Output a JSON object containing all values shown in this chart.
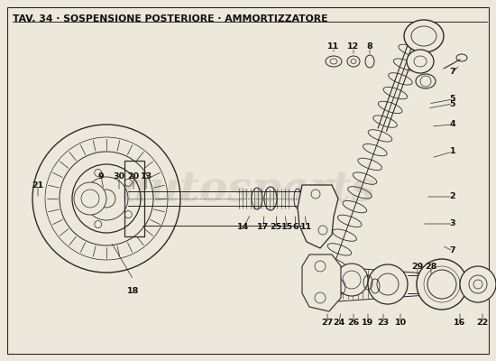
{
  "title": "TAV. 34 · SOSPENSIONE POSTERIORE · AMMORTIZZATORE",
  "bg_color": "#ede8dc",
  "border_color": "#444444",
  "line_color": "#2a2a2a",
  "watermark_text": "autosparts",
  "watermark_color": "#b0a898",
  "watermark_alpha": 0.28,
  "title_fontsize": 7.8,
  "label_fontsize": 6.8,
  "figsize": [
    5.5,
    4.0
  ],
  "dpi": 100
}
